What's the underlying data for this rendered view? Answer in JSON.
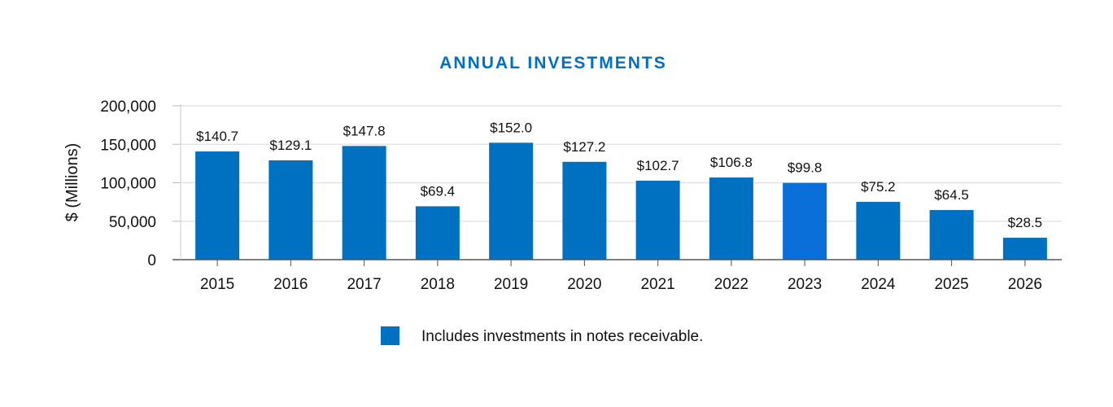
{
  "chart_data": {
    "type": "bar",
    "title": "ANNUAL INVESTMENTS",
    "ylabel": "$ (Millions)",
    "xlabel": "",
    "categories": [
      "2015",
      "2016",
      "2017",
      "2018",
      "2019",
      "2020",
      "2021",
      "2022",
      "2023",
      "2024",
      "2025",
      "2026"
    ],
    "values": [
      140700,
      129100,
      147800,
      69400,
      152000,
      127200,
      102700,
      106800,
      99800,
      75200,
      64500,
      28500
    ],
    "data_labels": [
      "$140.7",
      "$129.1",
      "$147.8",
      "$69.4",
      "$152.0",
      "$127.2",
      "$102.7",
      "$106.8",
      "$99.8",
      "$75.2",
      "$64.5",
      "$28.5"
    ],
    "ylim": [
      0,
      200000
    ],
    "yticks": [
      0,
      50000,
      100000,
      150000,
      200000
    ],
    "ytick_labels": [
      "0",
      "50,000",
      "100,000",
      "150,000",
      "200,000"
    ],
    "grid": true,
    "legend": {
      "placement": "bottom-center",
      "label": "Includes investments in notes receivable."
    },
    "colors": {
      "bar": "#0070c0",
      "highlight_bar": "#0a6fd8",
      "title": "#0070c0",
      "grid": "#e4e4e4",
      "axis": "#555555"
    },
    "highlight_index": 8
  }
}
